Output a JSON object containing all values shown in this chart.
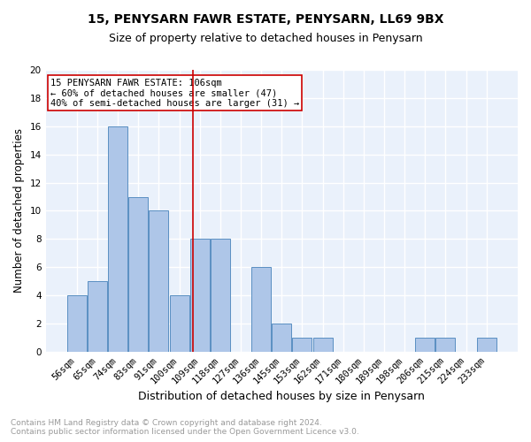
{
  "title": "15, PENYSARN FAWR ESTATE, PENYSARN, LL69 9BX",
  "subtitle": "Size of property relative to detached houses in Penysarn",
  "xlabel": "Distribution of detached houses by size in Penysarn",
  "ylabel": "Number of detached properties",
  "footnote1": "Contains HM Land Registry data © Crown copyright and database right 2024.",
  "footnote2": "Contains public sector information licensed under the Open Government Licence v3.0.",
  "bar_labels": [
    "56sqm",
    "65sqm",
    "74sqm",
    "83sqm",
    "91sqm",
    "100sqm",
    "109sqm",
    "118sqm",
    "127sqm",
    "136sqm",
    "145sqm",
    "153sqm",
    "162sqm",
    "171sqm",
    "180sqm",
    "189sqm",
    "198sqm",
    "206sqm",
    "215sqm",
    "224sqm",
    "233sqm"
  ],
  "bar_values": [
    4,
    5,
    16,
    11,
    10,
    4,
    8,
    8,
    0,
    6,
    2,
    1,
    1,
    0,
    0,
    0,
    0,
    1,
    1,
    0,
    1
  ],
  "bar_color": "#aec6e8",
  "bar_edgecolor": "#5a8fc2",
  "ylim": [
    0,
    20
  ],
  "yticks": [
    0,
    2,
    4,
    6,
    8,
    10,
    12,
    14,
    16,
    18,
    20
  ],
  "vline_color": "#cc0000",
  "annotation_text": "15 PENYSARN FAWR ESTATE: 106sqm\n← 60% of detached houses are smaller (47)\n40% of semi-detached houses are larger (31) →",
  "annotation_box_color": "#ffffff",
  "annotation_box_edgecolor": "#cc0000",
  "bg_color": "#eaf1fb",
  "grid_color": "#ffffff",
  "title_fontsize": 10,
  "subtitle_fontsize": 9,
  "ylabel_fontsize": 8.5,
  "xlabel_fontsize": 9,
  "tick_fontsize": 7.5,
  "annotation_fontsize": 7.5,
  "footnote_fontsize": 6.5
}
